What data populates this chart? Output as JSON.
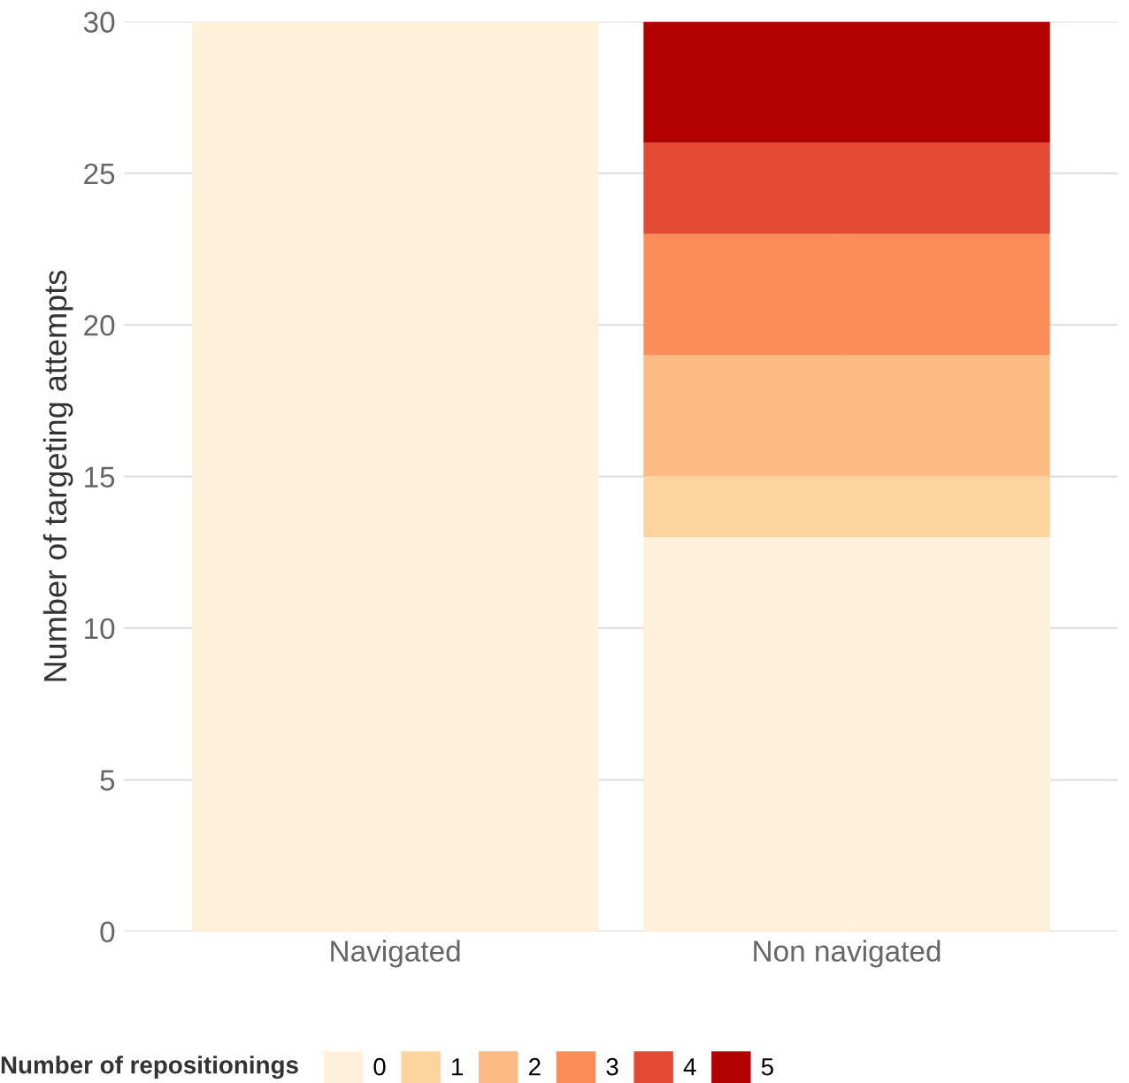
{
  "chart_data": {
    "type": "bar",
    "stacked": true,
    "ylabel": "Number of targeting attempts",
    "legend_title": "Number of repositionings",
    "categories": [
      "Navigated",
      "Non navigated"
    ],
    "series": [
      {
        "name": "0",
        "color": "#fef0d9",
        "values": [
          30,
          13
        ]
      },
      {
        "name": "1",
        "color": "#fdd49e",
        "values": [
          0,
          2
        ]
      },
      {
        "name": "2",
        "color": "#fdbb84",
        "values": [
          0,
          4
        ]
      },
      {
        "name": "3",
        "color": "#fc8d59",
        "values": [
          0,
          4
        ]
      },
      {
        "name": "4",
        "color": "#e34a33",
        "values": [
          0,
          3
        ]
      },
      {
        "name": "5",
        "color": "#b30000",
        "values": [
          0,
          4
        ]
      }
    ],
    "ylim": [
      0,
      30
    ],
    "yticks": [
      0,
      5,
      10,
      15,
      20,
      25,
      30
    ],
    "grid": true,
    "legend": "bottom"
  }
}
